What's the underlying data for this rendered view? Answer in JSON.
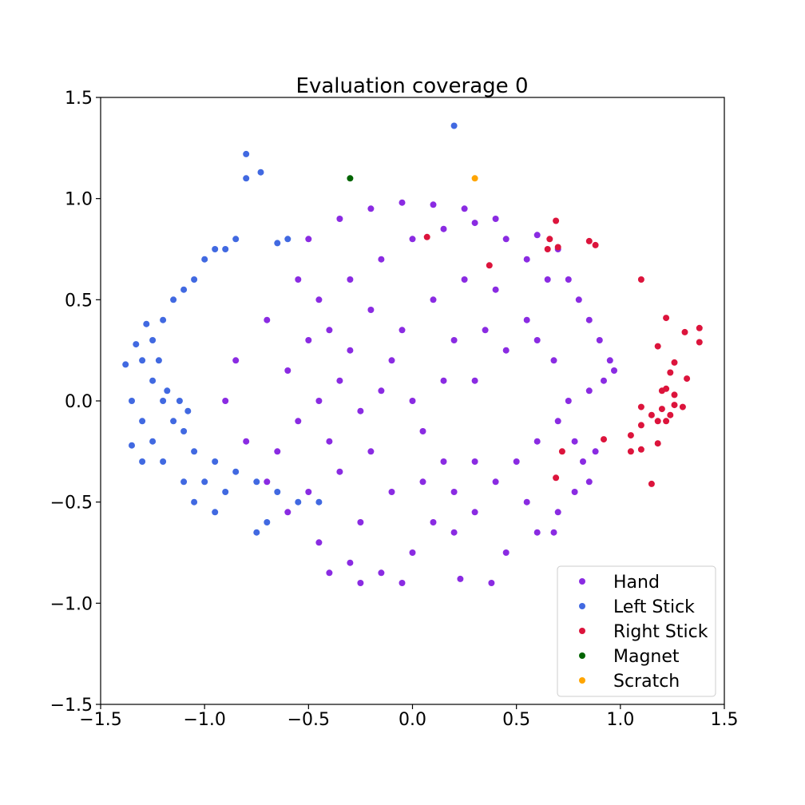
{
  "chart_data": {
    "type": "scatter",
    "title": "Evaluation coverage 0",
    "xlabel": "",
    "ylabel": "",
    "xlim": [
      -1.5,
      1.5
    ],
    "ylim": [
      -1.5,
      1.5
    ],
    "xticks": [
      -1.5,
      -1.0,
      -0.5,
      0.0,
      0.5,
      1.0,
      1.5
    ],
    "yticks": [
      -1.5,
      -1.0,
      -0.5,
      0.0,
      0.5,
      1.0,
      1.5
    ],
    "xtick_labels": [
      "−1.5",
      "−1.0",
      "−0.5",
      "0.0",
      "0.5",
      "1.0",
      "1.5"
    ],
    "ytick_labels": [
      "−1.5",
      "−1.0",
      "−0.5",
      "0.0",
      "0.5",
      "1.0",
      "1.5"
    ],
    "grid": false,
    "legend_position": "bottom-right",
    "series": [
      {
        "name": "Hand",
        "color": "#8a2be2",
        "points": [
          [
            -0.45,
            0.0
          ],
          [
            -0.35,
            0.1
          ],
          [
            -0.25,
            -0.05
          ],
          [
            -0.15,
            0.05
          ],
          [
            -0.55,
            -0.1
          ],
          [
            -0.4,
            -0.2
          ],
          [
            -0.3,
            0.25
          ],
          [
            -0.2,
            -0.25
          ],
          [
            -0.1,
            0.2
          ],
          [
            0.0,
            0.0
          ],
          [
            -0.6,
            0.15
          ],
          [
            -0.5,
            0.3
          ],
          [
            -0.65,
            -0.25
          ],
          [
            -0.35,
            -0.35
          ],
          [
            0.05,
            -0.15
          ],
          [
            -0.05,
            0.35
          ],
          [
            -0.45,
            0.5
          ],
          [
            -0.3,
            0.6
          ],
          [
            -0.15,
            0.7
          ],
          [
            0.0,
            0.8
          ],
          [
            0.15,
            0.85
          ],
          [
            0.3,
            0.88
          ],
          [
            0.45,
            0.8
          ],
          [
            0.55,
            0.7
          ],
          [
            0.65,
            0.6
          ],
          [
            -0.55,
            0.6
          ],
          [
            -0.7,
            0.4
          ],
          [
            -0.85,
            0.2
          ],
          [
            -0.9,
            0.0
          ],
          [
            -0.8,
            -0.2
          ],
          [
            -0.7,
            -0.4
          ],
          [
            -0.6,
            -0.55
          ],
          [
            -0.45,
            -0.7
          ],
          [
            -0.3,
            -0.8
          ],
          [
            -0.15,
            -0.85
          ],
          [
            0.0,
            -0.75
          ],
          [
            0.1,
            -0.6
          ],
          [
            0.2,
            -0.45
          ],
          [
            0.3,
            -0.3
          ],
          [
            0.15,
            -0.3
          ],
          [
            -0.2,
            0.95
          ],
          [
            -0.05,
            0.98
          ],
          [
            0.1,
            0.97
          ],
          [
            0.25,
            0.95
          ],
          [
            0.4,
            0.9
          ],
          [
            -0.35,
            0.9
          ],
          [
            -0.5,
            0.8
          ],
          [
            0.6,
            0.82
          ],
          [
            0.7,
            0.75
          ],
          [
            0.75,
            0.6
          ],
          [
            0.8,
            0.5
          ],
          [
            0.85,
            0.4
          ],
          [
            0.9,
            0.3
          ],
          [
            0.95,
            0.2
          ],
          [
            0.97,
            0.15
          ],
          [
            0.92,
            0.1
          ],
          [
            0.85,
            0.05
          ],
          [
            0.75,
            0.0
          ],
          [
            0.7,
            -0.1
          ],
          [
            0.6,
            -0.2
          ],
          [
            0.5,
            -0.3
          ],
          [
            0.4,
            -0.4
          ],
          [
            0.3,
            -0.55
          ],
          [
            0.2,
            -0.65
          ],
          [
            0.35,
            0.35
          ],
          [
            0.45,
            0.25
          ],
          [
            0.55,
            0.4
          ],
          [
            0.6,
            0.3
          ],
          [
            0.4,
            0.55
          ],
          [
            0.25,
            0.6
          ],
          [
            0.1,
            0.5
          ],
          [
            0.2,
            0.3
          ],
          [
            0.3,
            0.1
          ],
          [
            0.15,
            0.1
          ],
          [
            -0.2,
            0.45
          ],
          [
            -0.4,
            0.35
          ],
          [
            -0.1,
            -0.45
          ],
          [
            -0.25,
            -0.6
          ],
          [
            -0.5,
            -0.45
          ],
          [
            0.05,
            -0.4
          ],
          [
            0.6,
            -0.65
          ],
          [
            0.38,
            -0.9
          ],
          [
            0.23,
            -0.88
          ],
          [
            0.7,
            -0.55
          ],
          [
            0.68,
            -0.65
          ],
          [
            0.78,
            -0.45
          ],
          [
            0.82,
            -0.3
          ],
          [
            0.88,
            -0.25
          ],
          [
            0.55,
            -0.5
          ],
          [
            0.45,
            -0.75
          ],
          [
            -0.25,
            -0.9
          ],
          [
            -0.05,
            -0.9
          ],
          [
            -0.4,
            -0.85
          ],
          [
            0.85,
            -0.4
          ],
          [
            0.78,
            -0.2
          ],
          [
            0.68,
            0.2
          ]
        ]
      },
      {
        "name": "Left Stick",
        "color": "#4169e1",
        "points": [
          [
            -1.25,
            0.1
          ],
          [
            -1.2,
            0.0
          ],
          [
            -1.15,
            -0.1
          ],
          [
            -1.1,
            -0.15
          ],
          [
            -1.3,
            0.2
          ],
          [
            -1.25,
            0.3
          ],
          [
            -1.2,
            0.4
          ],
          [
            -1.15,
            0.5
          ],
          [
            -1.1,
            0.55
          ],
          [
            -1.05,
            0.6
          ],
          [
            -1.0,
            0.7
          ],
          [
            -0.95,
            0.75
          ],
          [
            -1.35,
            0.0
          ],
          [
            -1.3,
            -0.1
          ],
          [
            -1.25,
            -0.2
          ],
          [
            -1.05,
            -0.25
          ],
          [
            -0.95,
            -0.3
          ],
          [
            -0.85,
            -0.35
          ],
          [
            -0.75,
            -0.4
          ],
          [
            -0.65,
            -0.45
          ],
          [
            -0.55,
            -0.5
          ],
          [
            -0.45,
            -0.5
          ],
          [
            -1.0,
            -0.4
          ],
          [
            -0.9,
            -0.45
          ],
          [
            -1.38,
            0.18
          ],
          [
            -1.33,
            0.28
          ],
          [
            -1.28,
            0.38
          ],
          [
            -1.22,
            0.2
          ],
          [
            -1.18,
            0.05
          ],
          [
            -1.12,
            0.0
          ],
          [
            -1.08,
            -0.05
          ],
          [
            -1.35,
            -0.22
          ],
          [
            -1.3,
            -0.3
          ],
          [
            -1.2,
            -0.3
          ],
          [
            -0.8,
            1.22
          ],
          [
            -0.8,
            1.1
          ],
          [
            -0.73,
            1.13
          ],
          [
            0.2,
            1.36
          ],
          [
            -0.85,
            0.8
          ],
          [
            -0.9,
            0.75
          ],
          [
            -0.7,
            -0.6
          ],
          [
            -0.75,
            -0.65
          ],
          [
            -1.1,
            -0.4
          ],
          [
            -1.05,
            -0.5
          ],
          [
            -0.95,
            -0.55
          ],
          [
            -0.6,
            0.8
          ],
          [
            -0.65,
            0.78
          ]
        ]
      },
      {
        "name": "Right Stick",
        "color": "#dc143c",
        "points": [
          [
            0.69,
            0.89
          ],
          [
            0.66,
            0.8
          ],
          [
            0.7,
            0.76
          ],
          [
            0.65,
            0.75
          ],
          [
            0.85,
            0.79
          ],
          [
            0.88,
            0.77
          ],
          [
            0.07,
            0.81
          ],
          [
            0.37,
            0.67
          ],
          [
            1.1,
            0.6
          ],
          [
            1.22,
            0.41
          ],
          [
            1.38,
            0.36
          ],
          [
            1.31,
            0.34
          ],
          [
            1.38,
            0.29
          ],
          [
            1.18,
            0.27
          ],
          [
            1.26,
            0.19
          ],
          [
            1.24,
            0.14
          ],
          [
            1.32,
            0.11
          ],
          [
            1.22,
            0.06
          ],
          [
            1.2,
            0.05
          ],
          [
            1.26,
            0.03
          ],
          [
            1.1,
            -0.03
          ],
          [
            1.26,
            -0.02
          ],
          [
            1.2,
            -0.04
          ],
          [
            1.3,
            -0.03
          ],
          [
            1.15,
            -0.07
          ],
          [
            1.24,
            -0.07
          ],
          [
            1.18,
            -0.1
          ],
          [
            1.22,
            -0.1
          ],
          [
            1.1,
            -0.12
          ],
          [
            1.05,
            -0.17
          ],
          [
            1.18,
            -0.21
          ],
          [
            1.1,
            -0.24
          ],
          [
            1.05,
            -0.25
          ],
          [
            0.72,
            -0.25
          ],
          [
            0.92,
            -0.19
          ],
          [
            0.69,
            -0.38
          ],
          [
            1.15,
            -0.41
          ]
        ]
      },
      {
        "name": "Magnet",
        "color": "#006400",
        "points": [
          [
            -0.3,
            1.1
          ]
        ]
      },
      {
        "name": "Scratch",
        "color": "#ffa500",
        "points": [
          [
            0.3,
            1.1
          ]
        ]
      }
    ]
  }
}
